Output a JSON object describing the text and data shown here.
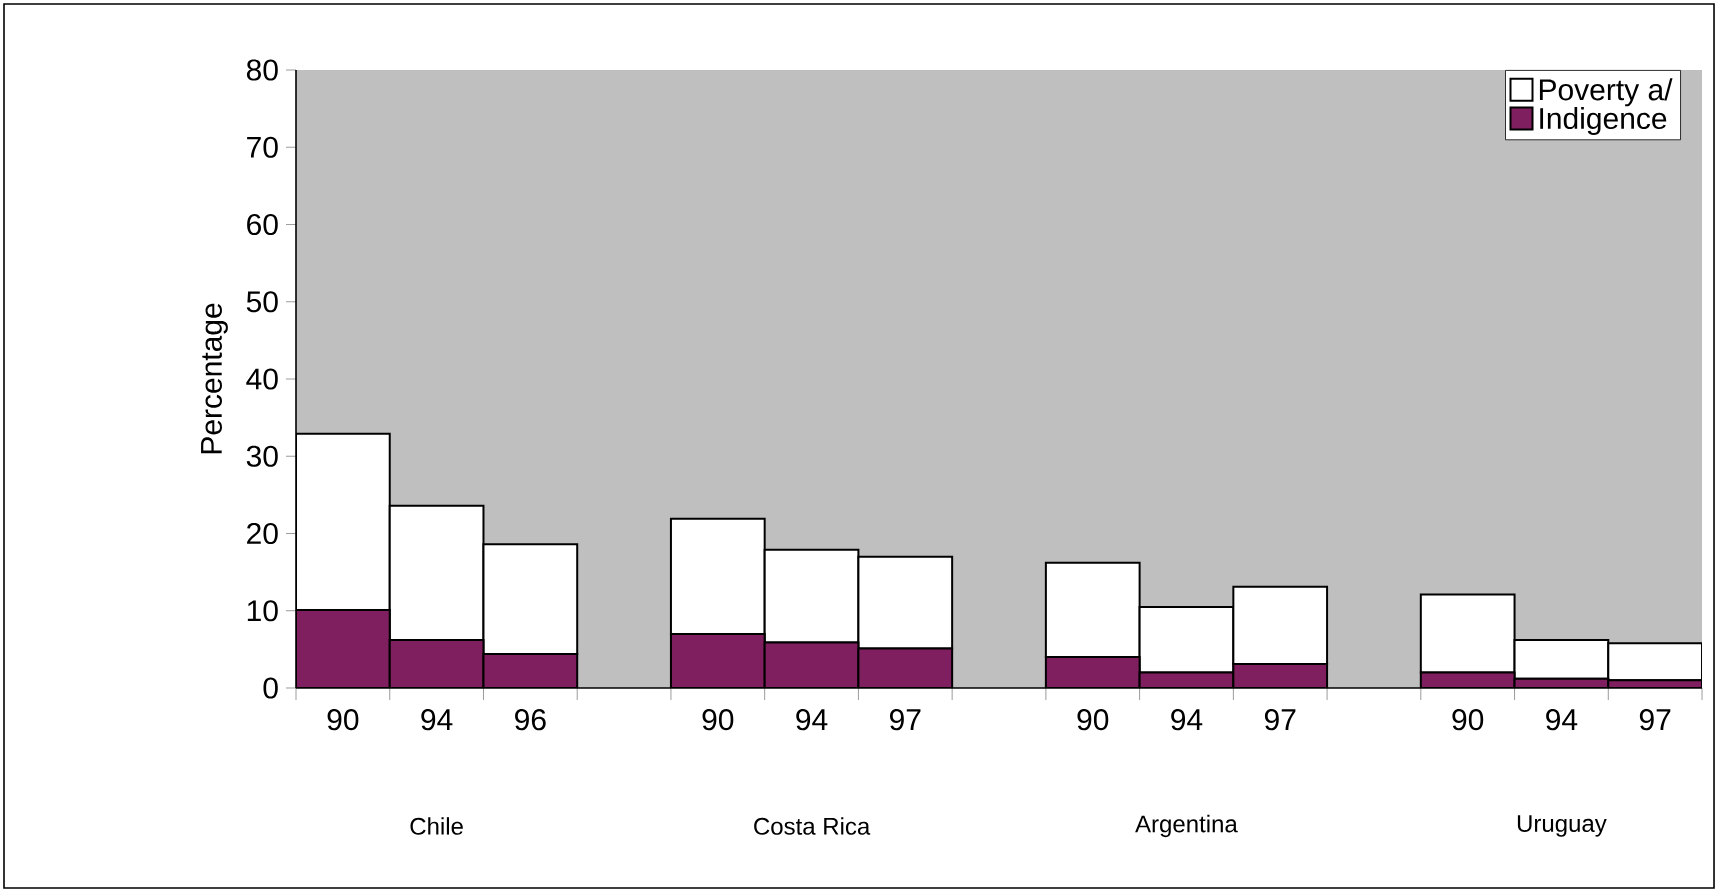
{
  "chart_data": {
    "type": "bar",
    "stacked": true,
    "ylabel": "Percentage",
    "categories": [
      "90",
      "94",
      "96",
      null,
      "90",
      "94",
      "97",
      null,
      "90",
      "94",
      "97",
      null,
      "90",
      "94",
      "97"
    ],
    "series": [
      {
        "name": "Indigence",
        "color": "#7f1f5f",
        "values": [
          10.1,
          6.2,
          4.4,
          null,
          7.0,
          5.9,
          5.1,
          null,
          4.0,
          2.0,
          3.1,
          null,
          2.0,
          1.2,
          1.0
        ]
      },
      {
        "name": "Poverty a/",
        "color": "#ffffff",
        "values": [
          22.8,
          17.4,
          14.2,
          null,
          14.9,
          12.0,
          11.9,
          null,
          12.2,
          8.5,
          10.0,
          null,
          10.1,
          5.0,
          4.8
        ]
      }
    ],
    "ylim": [
      0,
      80
    ],
    "yticks": [
      0,
      10,
      20,
      30,
      40,
      50,
      60,
      70,
      80
    ],
    "legend": "top right",
    "annotations": [
      "Chile",
      "Costa Rica",
      "Argentina",
      "Uruguay"
    ]
  }
}
